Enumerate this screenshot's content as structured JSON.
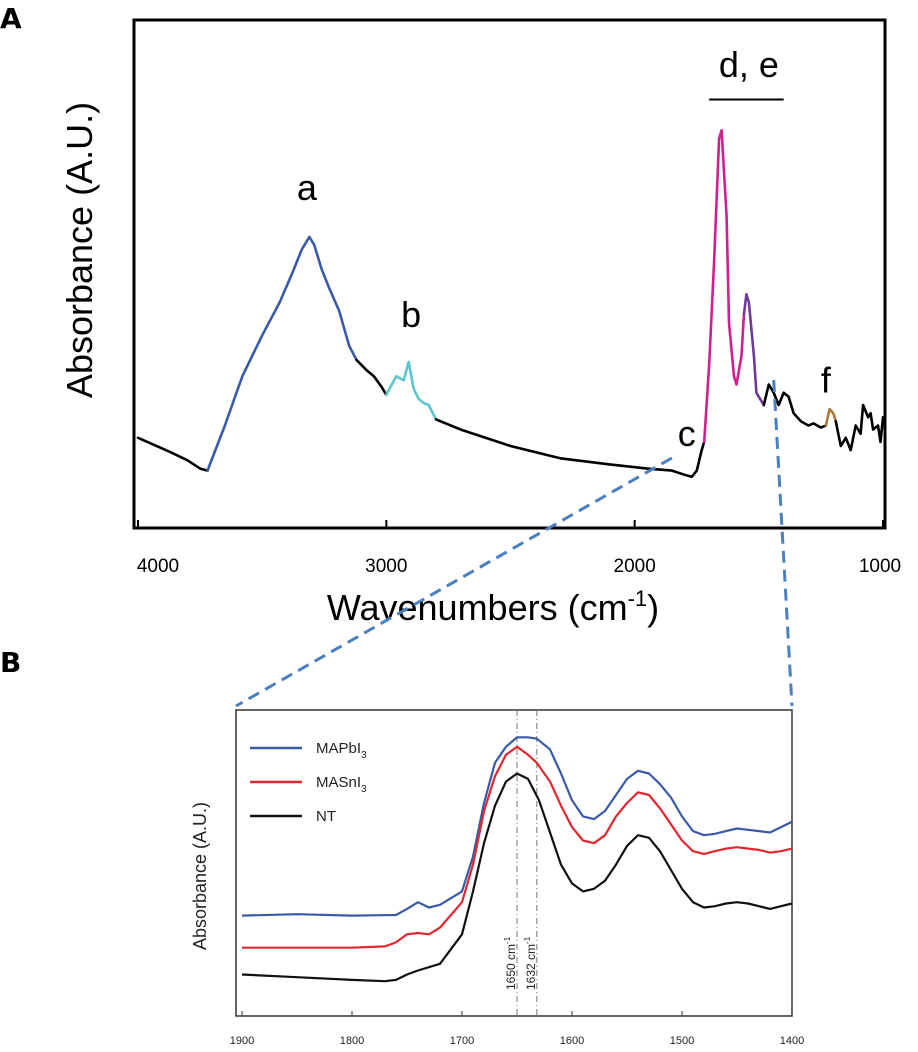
{
  "panels": {
    "a": {
      "label": "A"
    },
    "b": {
      "label": "B"
    }
  },
  "chart_data": [
    {
      "type": "line",
      "panel": "A",
      "title": "",
      "xlabel": "Wavenumbers (cm-1)",
      "xlabel_parts": {
        "main": "Wavenumbers (cm",
        "sup": "-1",
        "close": ")"
      },
      "ylabel": "Absorbance (A.U.)",
      "xlim": [
        4000,
        1000
      ],
      "x_reversed": true,
      "ylim": [
        0,
        1
      ],
      "xticks": [
        "4000",
        "3000",
        "2000",
        "1000"
      ],
      "grid": false,
      "segments": [
        {
          "name": "",
          "color": "#000000",
          "x": [
            4000,
            3870,
            3800,
            3750,
            3720
          ],
          "y": [
            0.22,
            0.185,
            0.165,
            0.145,
            0.14
          ]
        },
        {
          "name": "",
          "color": "#3a5aa8",
          "x": [
            3720,
            3650,
            3580,
            3500,
            3430,
            3380,
            3340,
            3310,
            3290,
            3260,
            3230,
            3190,
            3150,
            3120
          ],
          "y": [
            0.14,
            0.25,
            0.37,
            0.47,
            0.55,
            0.62,
            0.68,
            0.71,
            0.69,
            0.63,
            0.585,
            0.53,
            0.445,
            0.41
          ]
        },
        {
          "name": "",
          "color": "#000000",
          "x": [
            3120,
            3080,
            3050,
            3020,
            3000
          ],
          "y": [
            0.41,
            0.385,
            0.37,
            0.345,
            0.325
          ]
        },
        {
          "name": "",
          "color": "#5cc6cc",
          "x": [
            3000,
            2960,
            2930,
            2910,
            2890,
            2870,
            2850,
            2830,
            2800
          ],
          "y": [
            0.325,
            0.37,
            0.36,
            0.405,
            0.34,
            0.315,
            0.305,
            0.3,
            0.265
          ]
        },
        {
          "name": "",
          "color": "#000000",
          "x": [
            2800,
            2700,
            2500,
            2300,
            2100,
            1950,
            1850,
            1800,
            1770,
            1750,
            1730,
            1720
          ],
          "y": [
            0.265,
            0.24,
            0.2,
            0.17,
            0.155,
            0.145,
            0.14,
            0.13,
            0.125,
            0.14,
            0.19,
            0.21
          ]
        },
        {
          "name": "",
          "color": "#d11f8e",
          "x": [
            1720,
            1700,
            1680,
            1660,
            1650,
            1630,
            1620,
            1600,
            1590,
            1570,
            1560
          ],
          "y": [
            0.21,
            0.4,
            0.65,
            0.95,
            0.97,
            0.76,
            0.5,
            0.37,
            0.35,
            0.42,
            0.52
          ]
        },
        {
          "name": "",
          "color": "#6e3a99",
          "x": [
            1560,
            1550,
            1540,
            1520,
            1510,
            1490,
            1480
          ],
          "y": [
            0.52,
            0.57,
            0.55,
            0.42,
            0.33,
            0.31,
            0.3
          ]
        },
        {
          "name": "",
          "color": "#000000",
          "x": [
            1480,
            1460,
            1440,
            1420,
            1400,
            1380,
            1360,
            1330,
            1300,
            1280,
            1250,
            1230
          ],
          "y": [
            0.3,
            0.35,
            0.33,
            0.3,
            0.33,
            0.32,
            0.28,
            0.26,
            0.25,
            0.255,
            0.245,
            0.25
          ]
        },
        {
          "name": "",
          "color": "#a8783a",
          "x": [
            1230,
            1215,
            1200,
            1190
          ],
          "y": [
            0.25,
            0.29,
            0.28,
            0.26
          ]
        },
        {
          "name": "",
          "color": "#000000",
          "x": [
            1190,
            1170,
            1150,
            1130,
            1110,
            1090,
            1080,
            1060,
            1050,
            1040,
            1020,
            1010,
            1000
          ],
          "y": [
            0.26,
            0.2,
            0.22,
            0.19,
            0.25,
            0.23,
            0.3,
            0.27,
            0.28,
            0.24,
            0.25,
            0.21,
            0.27
          ]
        }
      ],
      "annotations": [
        {
          "text": "a",
          "x": 3320,
          "y": 0.8
        },
        {
          "text": "b",
          "x": 2900,
          "y": 0.49
        },
        {
          "text": "c",
          "x": 1790,
          "y": 0.2
        },
        {
          "text": "d, e",
          "x": 1540,
          "y": 1.1
        },
        {
          "text": "f",
          "x": 1230,
          "y": 0.33
        }
      ],
      "bracket": {
        "x": [
          1700,
          1400
        ],
        "y": 1.045
      }
    },
    {
      "type": "line",
      "panel": "B",
      "title": "",
      "xlabel": "",
      "ylabel": "Absorbance (A.U.)",
      "xlim": [
        1900,
        1400
      ],
      "x_reversed": true,
      "ylim": [
        0,
        1
      ],
      "xticks": [
        "1900",
        "1800",
        "1700",
        "1600",
        "1500",
        "1400"
      ],
      "grid": false,
      "legend": "top-left",
      "vlines": [
        {
          "x": 1650,
          "label": "1650 cm-1",
          "label_main": "1650 cm",
          "label_sup": "-1"
        },
        {
          "x": 1632,
          "label": "1632 cm-1",
          "label_main": "1632 cm",
          "label_sup": "-1"
        }
      ],
      "series": [
        {
          "name": "MAPbI3",
          "name_main": "MAPbI",
          "name_sub": "3",
          "color": "#3a5aa8",
          "x": [
            1900,
            1850,
            1800,
            1760,
            1750,
            1740,
            1730,
            1720,
            1700,
            1690,
            1680,
            1670,
            1660,
            1650,
            1640,
            1632,
            1620,
            1610,
            1600,
            1590,
            1580,
            1570,
            1560,
            1550,
            1540,
            1530,
            1520,
            1510,
            1500,
            1490,
            1480,
            1470,
            1460,
            1450,
            1440,
            1430,
            1420,
            1410,
            1400
          ],
          "y": [
            0.33,
            0.335,
            0.33,
            0.332,
            0.355,
            0.38,
            0.36,
            0.37,
            0.42,
            0.55,
            0.75,
            0.9,
            0.96,
            0.995,
            0.995,
            0.99,
            0.95,
            0.86,
            0.76,
            0.7,
            0.69,
            0.72,
            0.78,
            0.84,
            0.87,
            0.86,
            0.82,
            0.77,
            0.7,
            0.645,
            0.63,
            0.635,
            0.645,
            0.655,
            0.65,
            0.645,
            0.64,
            0.66,
            0.68
          ]
        },
        {
          "name": "MASnI3",
          "name_main": "MASnI",
          "name_sub": "3",
          "color": "#e2262e",
          "x": [
            1900,
            1850,
            1800,
            1770,
            1760,
            1750,
            1740,
            1730,
            1720,
            1700,
            1690,
            1680,
            1670,
            1660,
            1650,
            1640,
            1632,
            1620,
            1610,
            1600,
            1590,
            1580,
            1570,
            1560,
            1550,
            1540,
            1530,
            1520,
            1510,
            1500,
            1490,
            1480,
            1470,
            1460,
            1450,
            1440,
            1430,
            1420,
            1410,
            1400
          ],
          "y": [
            0.21,
            0.21,
            0.21,
            0.215,
            0.23,
            0.26,
            0.265,
            0.26,
            0.285,
            0.38,
            0.52,
            0.72,
            0.85,
            0.93,
            0.96,
            0.93,
            0.9,
            0.83,
            0.74,
            0.66,
            0.61,
            0.6,
            0.63,
            0.7,
            0.75,
            0.79,
            0.78,
            0.73,
            0.67,
            0.61,
            0.57,
            0.56,
            0.57,
            0.58,
            0.585,
            0.58,
            0.575,
            0.565,
            0.57,
            0.58
          ]
        },
        {
          "name": "NT",
          "name_main": "NT",
          "name_sub": "",
          "color": "#111111",
          "x": [
            1900,
            1850,
            1800,
            1770,
            1760,
            1750,
            1740,
            1720,
            1700,
            1690,
            1680,
            1670,
            1660,
            1650,
            1640,
            1630,
            1620,
            1610,
            1600,
            1590,
            1580,
            1570,
            1560,
            1550,
            1540,
            1530,
            1520,
            1510,
            1500,
            1490,
            1480,
            1470,
            1460,
            1450,
            1440,
            1430,
            1420,
            1410,
            1400
          ],
          "y": [
            0.11,
            0.1,
            0.09,
            0.085,
            0.09,
            0.11,
            0.125,
            0.15,
            0.26,
            0.42,
            0.6,
            0.74,
            0.83,
            0.86,
            0.84,
            0.76,
            0.64,
            0.52,
            0.45,
            0.42,
            0.43,
            0.46,
            0.52,
            0.59,
            0.63,
            0.62,
            0.57,
            0.5,
            0.43,
            0.38,
            0.36,
            0.365,
            0.375,
            0.38,
            0.375,
            0.365,
            0.355,
            0.365,
            0.375
          ]
        }
      ]
    }
  ],
  "connectors": {
    "color": "#4a7fc0",
    "from_wavenumbers": [
      1850,
      1440
    ]
  }
}
